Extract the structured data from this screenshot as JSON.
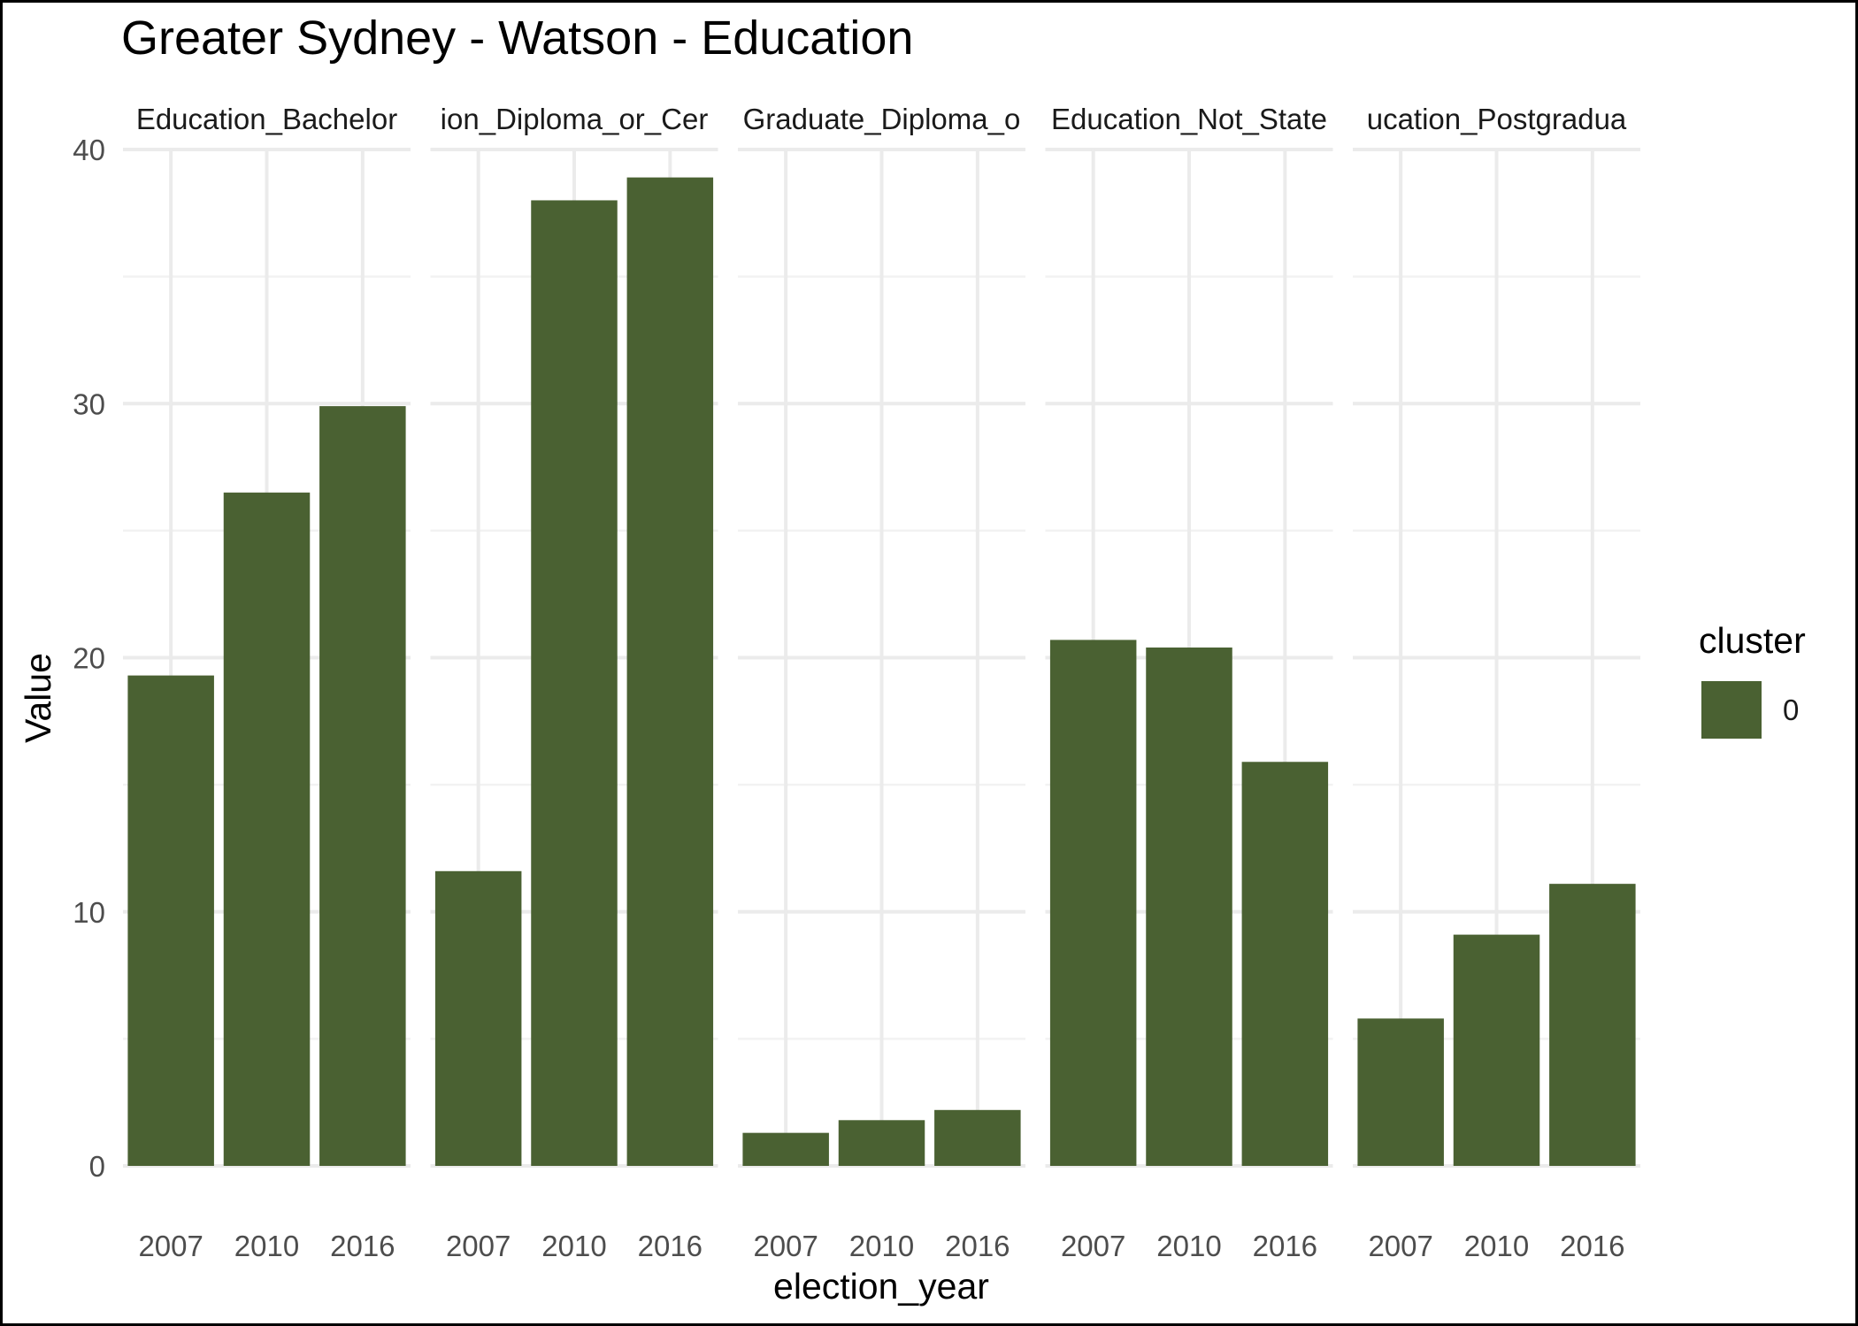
{
  "chart_data": {
    "type": "bar",
    "title": "Greater Sydney - Watson - Education",
    "xlabel": "election_year",
    "ylabel": "Value",
    "ylim": [
      0,
      40
    ],
    "yticks": [
      0,
      10,
      20,
      30,
      40
    ],
    "categories": [
      "2007",
      "2010",
      "2016"
    ],
    "grid": true,
    "facets": [
      {
        "label": "Education_Bachelor",
        "values": [
          19.3,
          26.5,
          29.9
        ]
      },
      {
        "label": "ion_Diploma_or_Cer",
        "values": [
          11.6,
          38.0,
          38.9
        ]
      },
      {
        "label": "Graduate_Diploma_o",
        "values": [
          1.3,
          1.8,
          2.2
        ]
      },
      {
        "label": "Education_Not_State",
        "values": [
          20.7,
          20.4,
          15.9
        ]
      },
      {
        "label": "ucation_Postgradua",
        "values": [
          5.8,
          9.1,
          11.1
        ]
      }
    ],
    "legend": {
      "title": "cluster",
      "position": "right",
      "entries": [
        {
          "label": "0",
          "color": "#4a6132"
        }
      ]
    },
    "bar_color": "#4a6132"
  }
}
